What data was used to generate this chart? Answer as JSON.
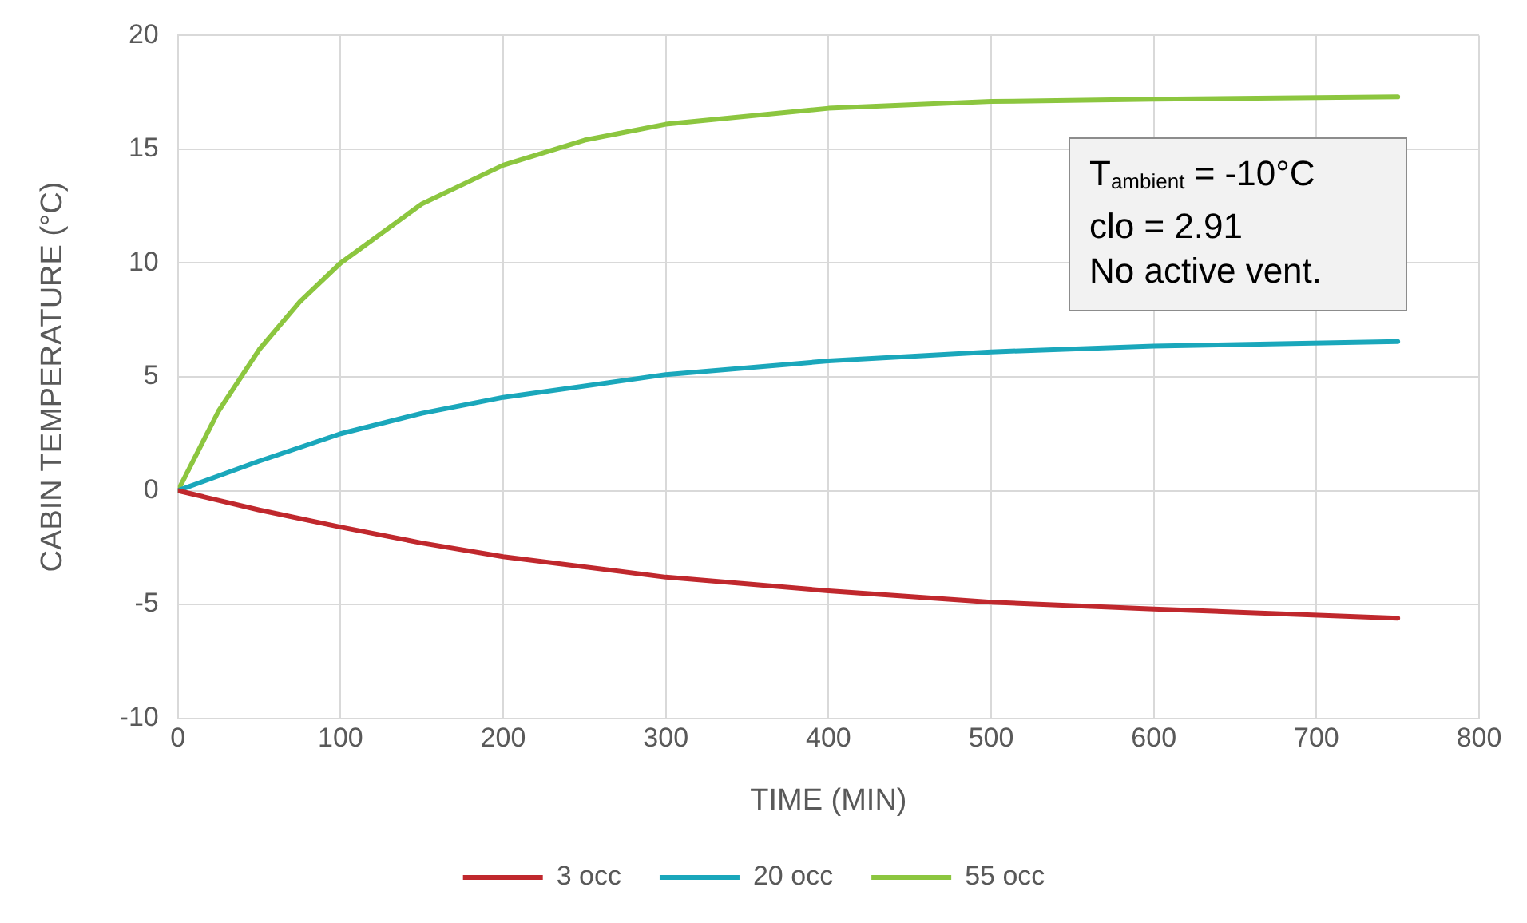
{
  "chart_data": {
    "type": "line",
    "xlabel": "TIME (MIN)",
    "ylabel": "CABIN TEMPERATURE (°C)",
    "annotations": [
      "T$_{ambient}$ = -10°C",
      "clo = 2.91",
      "No active vent."
    ],
    "xlim": [
      0,
      800
    ],
    "xticks": [
      0,
      100,
      200,
      300,
      400,
      500,
      600,
      700,
      800
    ],
    "ylim": [
      -10,
      20
    ],
    "yticks": [
      -10,
      -5,
      0,
      5,
      10,
      15,
      20
    ],
    "grid": true,
    "legend": "bottom",
    "marker": "none",
    "line_style": "solid",
    "series": [
      {
        "name": "3 occ",
        "color": "#c0282d",
        "x": [
          0,
          50,
          100,
          150,
          200,
          300,
          400,
          500,
          600,
          750
        ],
        "values": [
          0,
          -0.85,
          -1.6,
          -2.3,
          -2.9,
          -3.8,
          -4.4,
          -4.9,
          -5.2,
          -5.6
        ]
      },
      {
        "name": "20 occ",
        "color": "#1aa7bb",
        "x": [
          0,
          50,
          100,
          150,
          200,
          300,
          400,
          500,
          600,
          750
        ],
        "values": [
          0,
          1.3,
          2.5,
          3.4,
          4.1,
          5.1,
          5.7,
          6.1,
          6.35,
          6.55
        ]
      },
      {
        "name": "55 occ",
        "color": "#8cc63f",
        "x": [
          0,
          25,
          50,
          75,
          100,
          150,
          200,
          250,
          300,
          400,
          500,
          600,
          750
        ],
        "values": [
          0,
          3.5,
          6.2,
          8.3,
          10,
          12.6,
          14.3,
          15.4,
          16.1,
          16.8,
          17.1,
          17.2,
          17.3
        ]
      }
    ]
  }
}
